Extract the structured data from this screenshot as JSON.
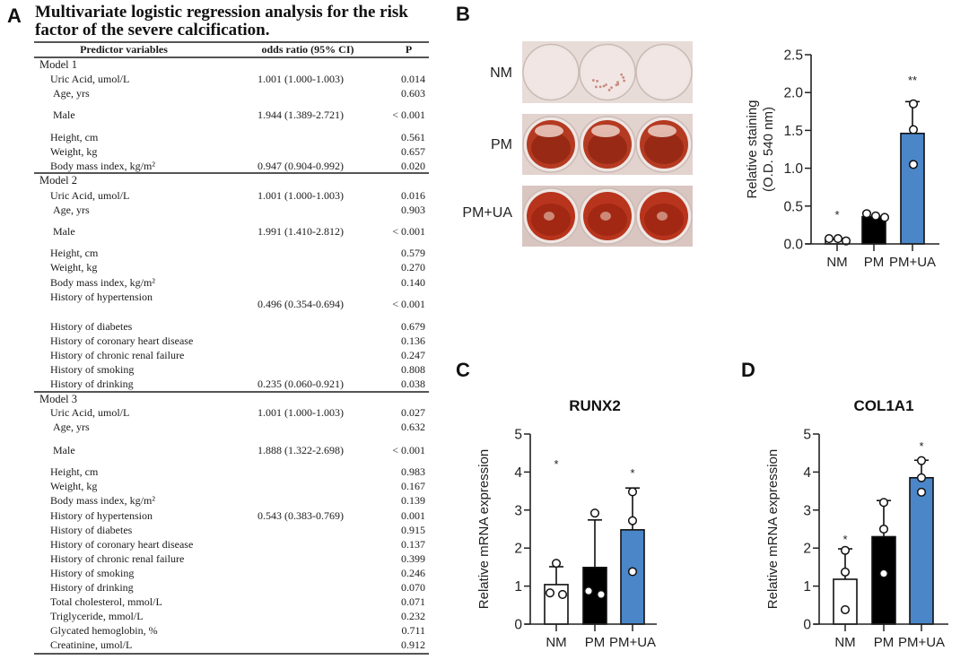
{
  "panel_a": {
    "letter": "A",
    "title_line1": "Multivariate logistic regression analysis for the risk",
    "title_line2": "factor of the severe calcification.",
    "columns": [
      "Predictor variables",
      "odds ratio (95% CI)",
      "P"
    ],
    "models": [
      {
        "name": "Model 1",
        "rows": [
          {
            "predictor": "Uric Acid, umol/L",
            "or": "1.001 (1.000-1.003)",
            "p": "0.014"
          },
          {
            "predictor": "Age, yrs",
            "or": "",
            "p": "0.603"
          },
          {
            "predictor": "Male",
            "or": "1.944 (1.389-2.721)",
            "p": "< 0.001"
          },
          {
            "predictor": "Height, cm",
            "or": "",
            "p": "0.561"
          },
          {
            "predictor": "Weight, kg",
            "or": "",
            "p": "0.657"
          },
          {
            "predictor": "Body mass index, kg/m²",
            "or": "0.947 (0.904-0.992)",
            "p": "0.020"
          }
        ]
      },
      {
        "name": "Model 2",
        "rows": [
          {
            "predictor": "Uric Acid, umol/L",
            "or": "1.001 (1.000-1.003)",
            "p": "0.016"
          },
          {
            "predictor": "Age, yrs",
            "or": "",
            "p": "0.903"
          },
          {
            "predictor": "Male",
            "or": "1.991 (1.410-2.812)",
            "p": "< 0.001"
          },
          {
            "predictor": "Height, cm",
            "or": "",
            "p": "0.579"
          },
          {
            "predictor": "Weight, kg",
            "or": "",
            "p": "0.270"
          },
          {
            "predictor": "Body mass index, kg/m²",
            "or": "",
            "p": "0.140"
          },
          {
            "predictor": "History of hypertension",
            "or": "0.496 (0.354-0.694)",
            "p": "< 0.001"
          },
          {
            "predictor": "History of diabetes",
            "or": "",
            "p": "0.679"
          },
          {
            "predictor": "History of coronary heart disease",
            "or": "",
            "p": "0.136"
          },
          {
            "predictor": "History of chronic renal failure",
            "or": "",
            "p": "0.247"
          },
          {
            "predictor": "History of smoking",
            "or": "",
            "p": "0.808"
          },
          {
            "predictor": "History of drinking",
            "or": "0.235 (0.060-0.921)",
            "p": "0.038"
          }
        ]
      },
      {
        "name": "Model 3",
        "rows": [
          {
            "predictor": "Uric Acid, umol/L",
            "or": "1.001 (1.000-1.003)",
            "p": "0.027"
          },
          {
            "predictor": "Age, yrs",
            "or": "",
            "p": "0.632"
          },
          {
            "predictor": "Male",
            "or": "1.888 (1.322-2.698)",
            "p": "< 0.001"
          },
          {
            "predictor": "Height, cm",
            "or": "",
            "p": "0.983"
          },
          {
            "predictor": "Weight, kg",
            "or": "",
            "p": "0.167"
          },
          {
            "predictor": "Body mass index, kg/m²",
            "or": "",
            "p": "0.139"
          },
          {
            "predictor": "History of hypertension",
            "or": "0.543 (0.383-0.769)",
            "p": "0.001"
          },
          {
            "predictor": "History of diabetes",
            "or": "",
            "p": "0.915"
          },
          {
            "predictor": "History of coronary heart disease",
            "or": "",
            "p": "0.137"
          },
          {
            "predictor": "History of chronic renal failure",
            "or": "",
            "p": "0.399"
          },
          {
            "predictor": "History of smoking",
            "or": "",
            "p": "0.246"
          },
          {
            "predictor": "History of drinking",
            "or": "",
            "p": "0.070"
          },
          {
            "predictor": "Total cholesterol, mmol/L",
            "or": "",
            "p": "0.071"
          },
          {
            "predictor": "Triglyceride, mmol/L",
            "or": "",
            "p": "0.232"
          },
          {
            "predictor": "Glycated hemoglobin, %",
            "or": "",
            "p": "0.711"
          },
          {
            "predictor": "Creatinine, umol/L",
            "or": "",
            "p": "0.912"
          }
        ]
      }
    ]
  },
  "panel_b": {
    "letter": "B",
    "photo_labels": [
      "NM",
      "PM",
      "PM+UA"
    ],
    "photo_colors": {
      "NM": {
        "plate": "#e8dcd8",
        "well": "#f1e6e3",
        "stain": "#c98a80"
      },
      "PM": {
        "plate": "#e3d3cf",
        "well": "#b53a22",
        "stain": "#8f2412"
      },
      "PM+UA": {
        "plate": "#d9c6c1",
        "well": "#b8341c",
        "stain": "#9b2410"
      }
    }
  },
  "panel_c": {
    "letter": "C"
  },
  "panel_d": {
    "letter": "D"
  },
  "colors": {
    "nm_bar": "#ffffff",
    "pm_bar": "#000000",
    "pmua_bar": "#4a86c8",
    "axis": "#222222"
  },
  "chart_data": [
    {
      "type": "bar",
      "panel": "B",
      "title": "",
      "xlabel": "",
      "ylabel_line1": "Relative staining",
      "ylabel_line2": "(O.D. 540 nm)",
      "categories": [
        "NM",
        "PM",
        "PM+UA"
      ],
      "values": [
        0.06,
        0.36,
        1.46
      ],
      "error_upper": [
        0.06,
        0.36,
        1.88
      ],
      "points": [
        [
          0.07,
          0.07,
          0.04
        ],
        [
          0.4,
          0.37,
          0.35
        ],
        [
          1.85,
          1.51,
          1.05
        ]
      ],
      "significance": [
        "*",
        "",
        "**"
      ],
      "ylim": [
        0,
        2.5
      ],
      "yticks": [
        0.0,
        0.5,
        1.0,
        1.5,
        2.0,
        2.5
      ],
      "ytick_labels": [
        "0.0",
        "0.5",
        "1.0",
        "1.5",
        "2.0",
        "2.5"
      ],
      "grid": false
    },
    {
      "type": "bar",
      "panel": "C",
      "title": "RUNX2",
      "xlabel": "",
      "ylabel_line1": "Relative mRNA expression",
      "ylabel_line2": "",
      "categories": [
        "NM",
        "PM",
        "PM+UA"
      ],
      "values": [
        1.04,
        1.49,
        2.48
      ],
      "error_upper": [
        1.51,
        2.74,
        3.58
      ],
      "points": [
        [
          1.6,
          0.82,
          0.78
        ],
        [
          2.92,
          0.87,
          0.78
        ],
        [
          3.48,
          2.72,
          1.38
        ]
      ],
      "significance": [
        "*",
        "",
        "*"
      ],
      "ylim": [
        0,
        5
      ],
      "yticks": [
        0,
        1,
        2,
        3,
        4,
        5
      ],
      "ytick_labels": [
        "0",
        "1",
        "2",
        "3",
        "4",
        "5"
      ],
      "grid": false
    },
    {
      "type": "bar",
      "panel": "D",
      "title": "COL1A1",
      "xlabel": "",
      "ylabel_line1": "Relative mRNA expression",
      "ylabel_line2": "",
      "categories": [
        "NM",
        "PM",
        "PM+UA"
      ],
      "values": [
        1.18,
        2.3,
        3.85
      ],
      "error_upper": [
        1.98,
        3.25,
        4.31
      ],
      "points": [
        [
          1.94,
          1.37,
          0.38
        ],
        [
          3.2,
          2.5,
          1.33
        ],
        [
          4.3,
          3.85,
          3.47
        ]
      ],
      "significance": [
        "*",
        "",
        "*"
      ],
      "ylim": [
        0,
        5
      ],
      "yticks": [
        0,
        1,
        2,
        3,
        4,
        5
      ],
      "ytick_labels": [
        "0",
        "1",
        "2",
        "3",
        "4",
        "5"
      ],
      "grid": false
    }
  ]
}
